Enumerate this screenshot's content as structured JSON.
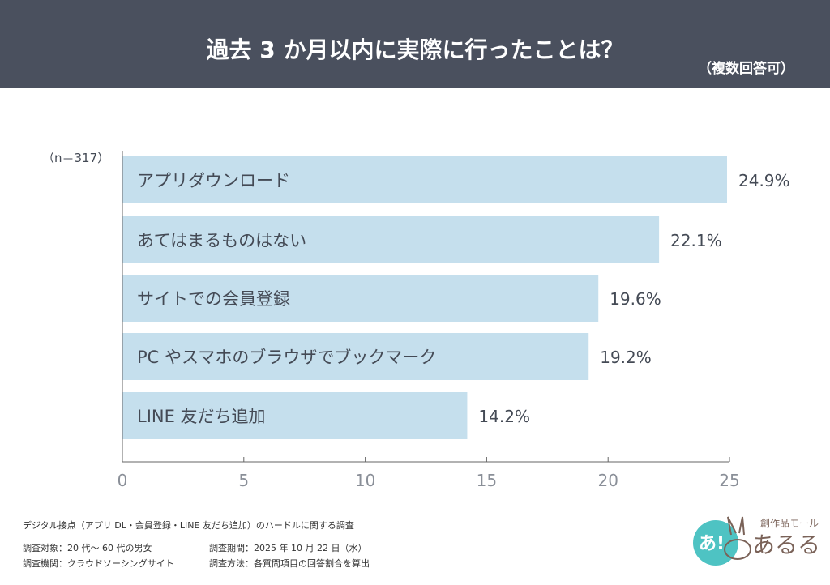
{
  "header": {
    "title": "過去 3 か月以内に実際に行ったことは？",
    "subtitle": "（複数回答可）"
  },
  "chart_data": {
    "type": "bar",
    "orientation": "horizontal",
    "sample_note": "（n＝317）",
    "categories": [
      "アプリダウンロード",
      "あてはまるものはない",
      "サイトでの会員登録",
      "PC やスマホのブラウザでブックマーク",
      "LINE 友だち追加"
    ],
    "values": [
      24.9,
      22.1,
      19.6,
      19.2,
      14.2
    ],
    "value_labels": [
      "24.9%",
      "22.1%",
      "19.6%",
      "19.2%",
      "14.2%"
    ],
    "xlim": [
      0,
      25
    ],
    "xticks": [
      "0",
      "5",
      "10",
      "15",
      "20",
      "25"
    ],
    "bar_color": "#c5dfed",
    "grid": false
  },
  "footer": {
    "survey_title": "デジタル接点（アプリ DL・会員登録・LINE 友だち追加）のハードルに関する調査",
    "target": "調査対象：20 代～ 60 代の男女",
    "period": "調査期間：2025 年 10 月 22 日（水）",
    "org": "調査機関：クラウドソーシングサイト",
    "method": "調査方法：各質問項目の回答割合を算出"
  },
  "logo": {
    "tagline": "創作品モール",
    "name": "あるる",
    "mark": "あ!"
  }
}
